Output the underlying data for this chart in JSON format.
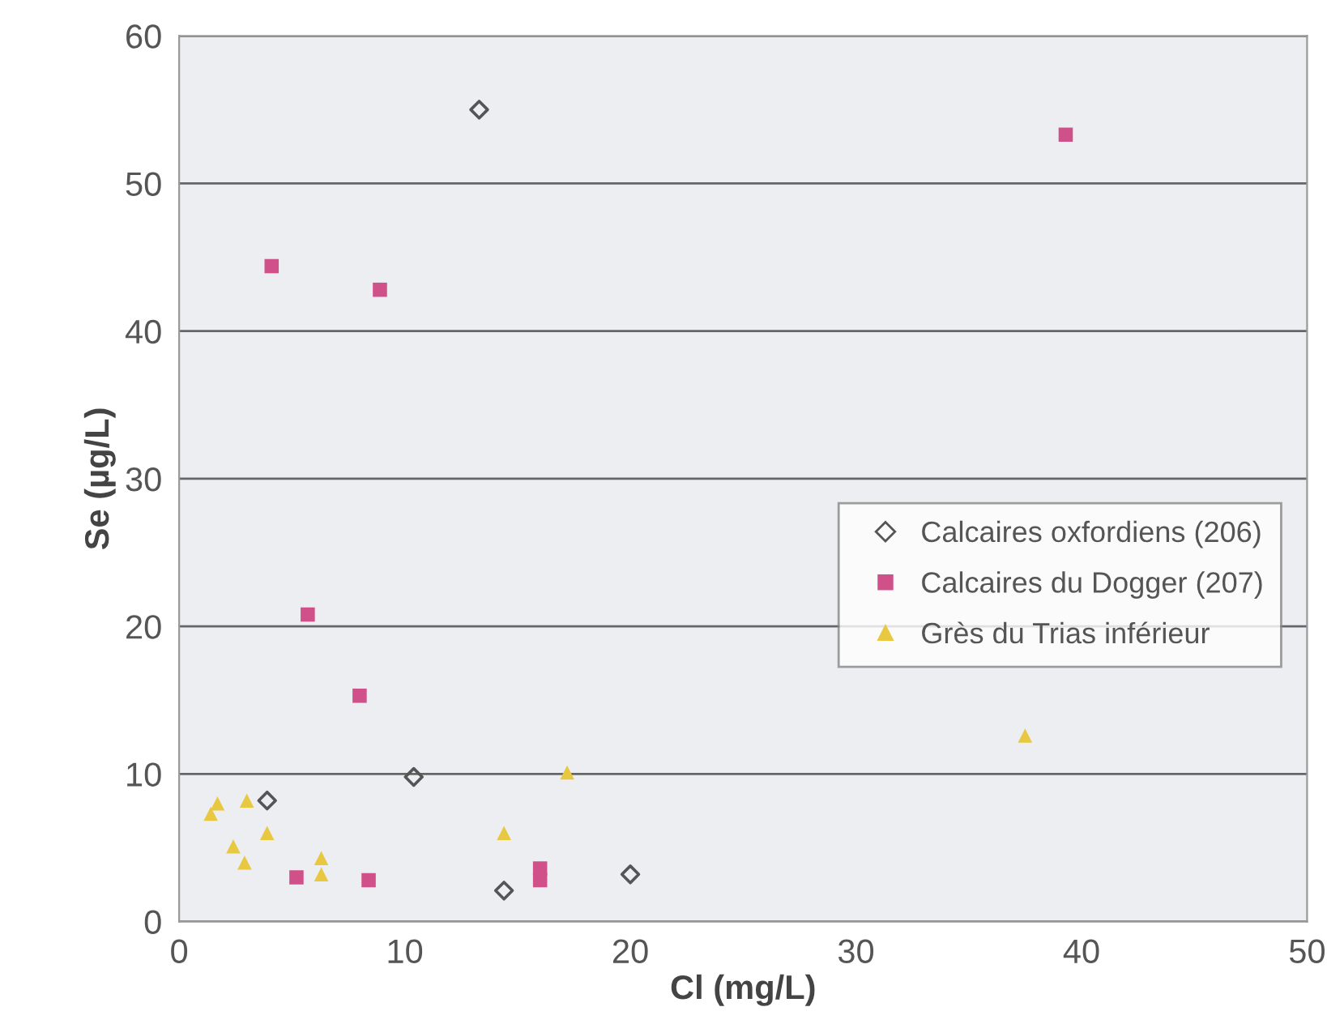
{
  "chart_data": {
    "type": "scatter",
    "xlabel": "Cl (mg/L)",
    "ylabel": "Se (µg/L)",
    "xlim": [
      0,
      50
    ],
    "xticks": [
      0,
      10,
      20,
      30,
      40,
      50
    ],
    "ylim": [
      0,
      60
    ],
    "yticks": [
      0,
      10,
      20,
      30,
      40,
      50,
      60
    ],
    "grid": "y",
    "legend": "right",
    "series": [
      {
        "name": "Calcaires oxfordiens (206)",
        "color": "#555555",
        "marker": "diamond",
        "x": [
          13.3,
          3.9,
          10.4,
          14.4,
          20.0
        ],
        "values": [
          55,
          8.2,
          9.8,
          2.1,
          3.2
        ]
      },
      {
        "name": "Calcaires du Dogger (207)",
        "color": "#d0508a",
        "marker": "square",
        "x": [
          4.1,
          8.9,
          39.3,
          5.7,
          8.0,
          5.2,
          8.4,
          16.0,
          16.0
        ],
        "values": [
          44.4,
          42.8,
          53.3,
          20.8,
          15.3,
          3.0,
          2.8,
          3.6,
          2.8
        ]
      },
      {
        "name": "Grès du Trias inférieur",
        "color": "#e8c840",
        "marker": "triangle",
        "x": [
          37.5,
          17.2,
          14.4,
          1.7,
          1.4,
          3.0,
          3.9,
          2.4,
          2.9,
          6.3,
          6.3
        ],
        "values": [
          12.6,
          10.1,
          6.0,
          8.0,
          7.3,
          8.2,
          6.0,
          5.1,
          4.0,
          4.3,
          3.2
        ]
      }
    ]
  }
}
